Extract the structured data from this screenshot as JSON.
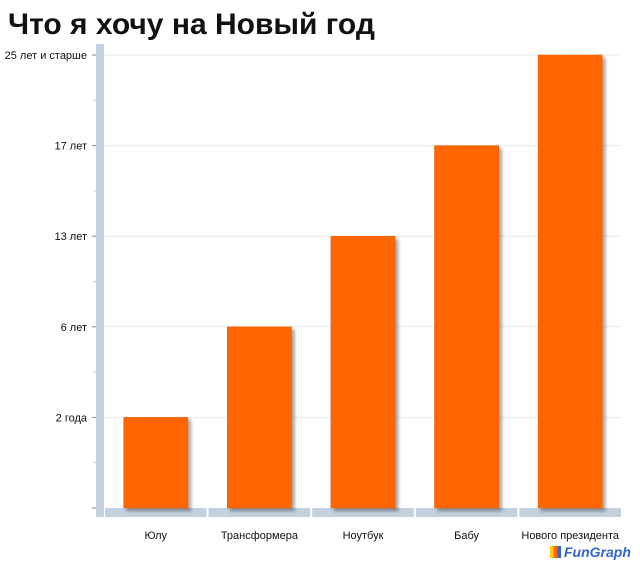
{
  "page": {
    "title": "Что я хочу на Новый год"
  },
  "branding": {
    "logo_text": "FunGraph"
  },
  "colors": {
    "bar": "#ff6600",
    "axis": "#c3d1de",
    "grid": "#e6ecf1",
    "text": "#111111"
  },
  "chart_data": {
    "type": "bar",
    "title": "Что я хочу на Новый год",
    "xlabel": "",
    "ylabel": "",
    "categories": [
      "Юлу",
      "Трансформера",
      "Ноутбук",
      "Бабу",
      "Нового президента"
    ],
    "values": [
      2,
      6,
      13,
      17,
      25
    ],
    "y_ticks": [
      {
        "position": 2,
        "label": "2 года"
      },
      {
        "position": 6,
        "label": "6 лет"
      },
      {
        "position": 13,
        "label": "13 лет"
      },
      {
        "position": 17,
        "label": "17 лет"
      },
      {
        "position": 25,
        "label": "25 лет и старше"
      }
    ],
    "y_scale": "ordinal, evenly spaced tick labels",
    "grid": true,
    "legend": "none"
  }
}
